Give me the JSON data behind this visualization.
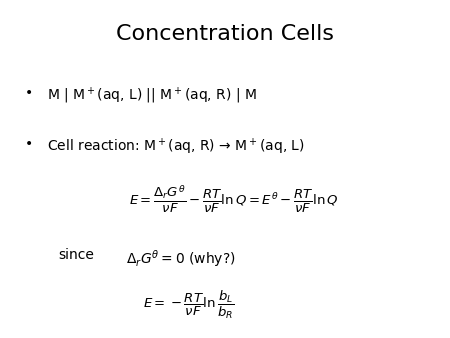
{
  "title": "Concentration Cells",
  "title_fontsize": 16,
  "bg_color": "#ffffff",
  "text_color": "#000000",
  "bullet1": "M | M$^+$(aq, L) || M$^+$(aq, R) | M",
  "bullet2": "Cell reaction: M$^+$(aq, R) → M$^+$(aq, L)",
  "equation1": "$E = \\dfrac{\\Delta_r G^{\\theta}}{\\nu F} - \\dfrac{RT}{\\nu F}\\ln Q = E^{\\theta} - \\dfrac{RT}{\\nu F}\\ln Q$",
  "since_text": "since",
  "since_eq": "$\\Delta_r G^{\\theta} = 0$ (why?)",
  "equation2": "$E = -\\dfrac{RT}{\\nu F}\\ln\\dfrac{b_L}{b_R}$",
  "bullet_fontsize": 10,
  "eq_fontsize": 9.5,
  "since_fontsize": 10
}
